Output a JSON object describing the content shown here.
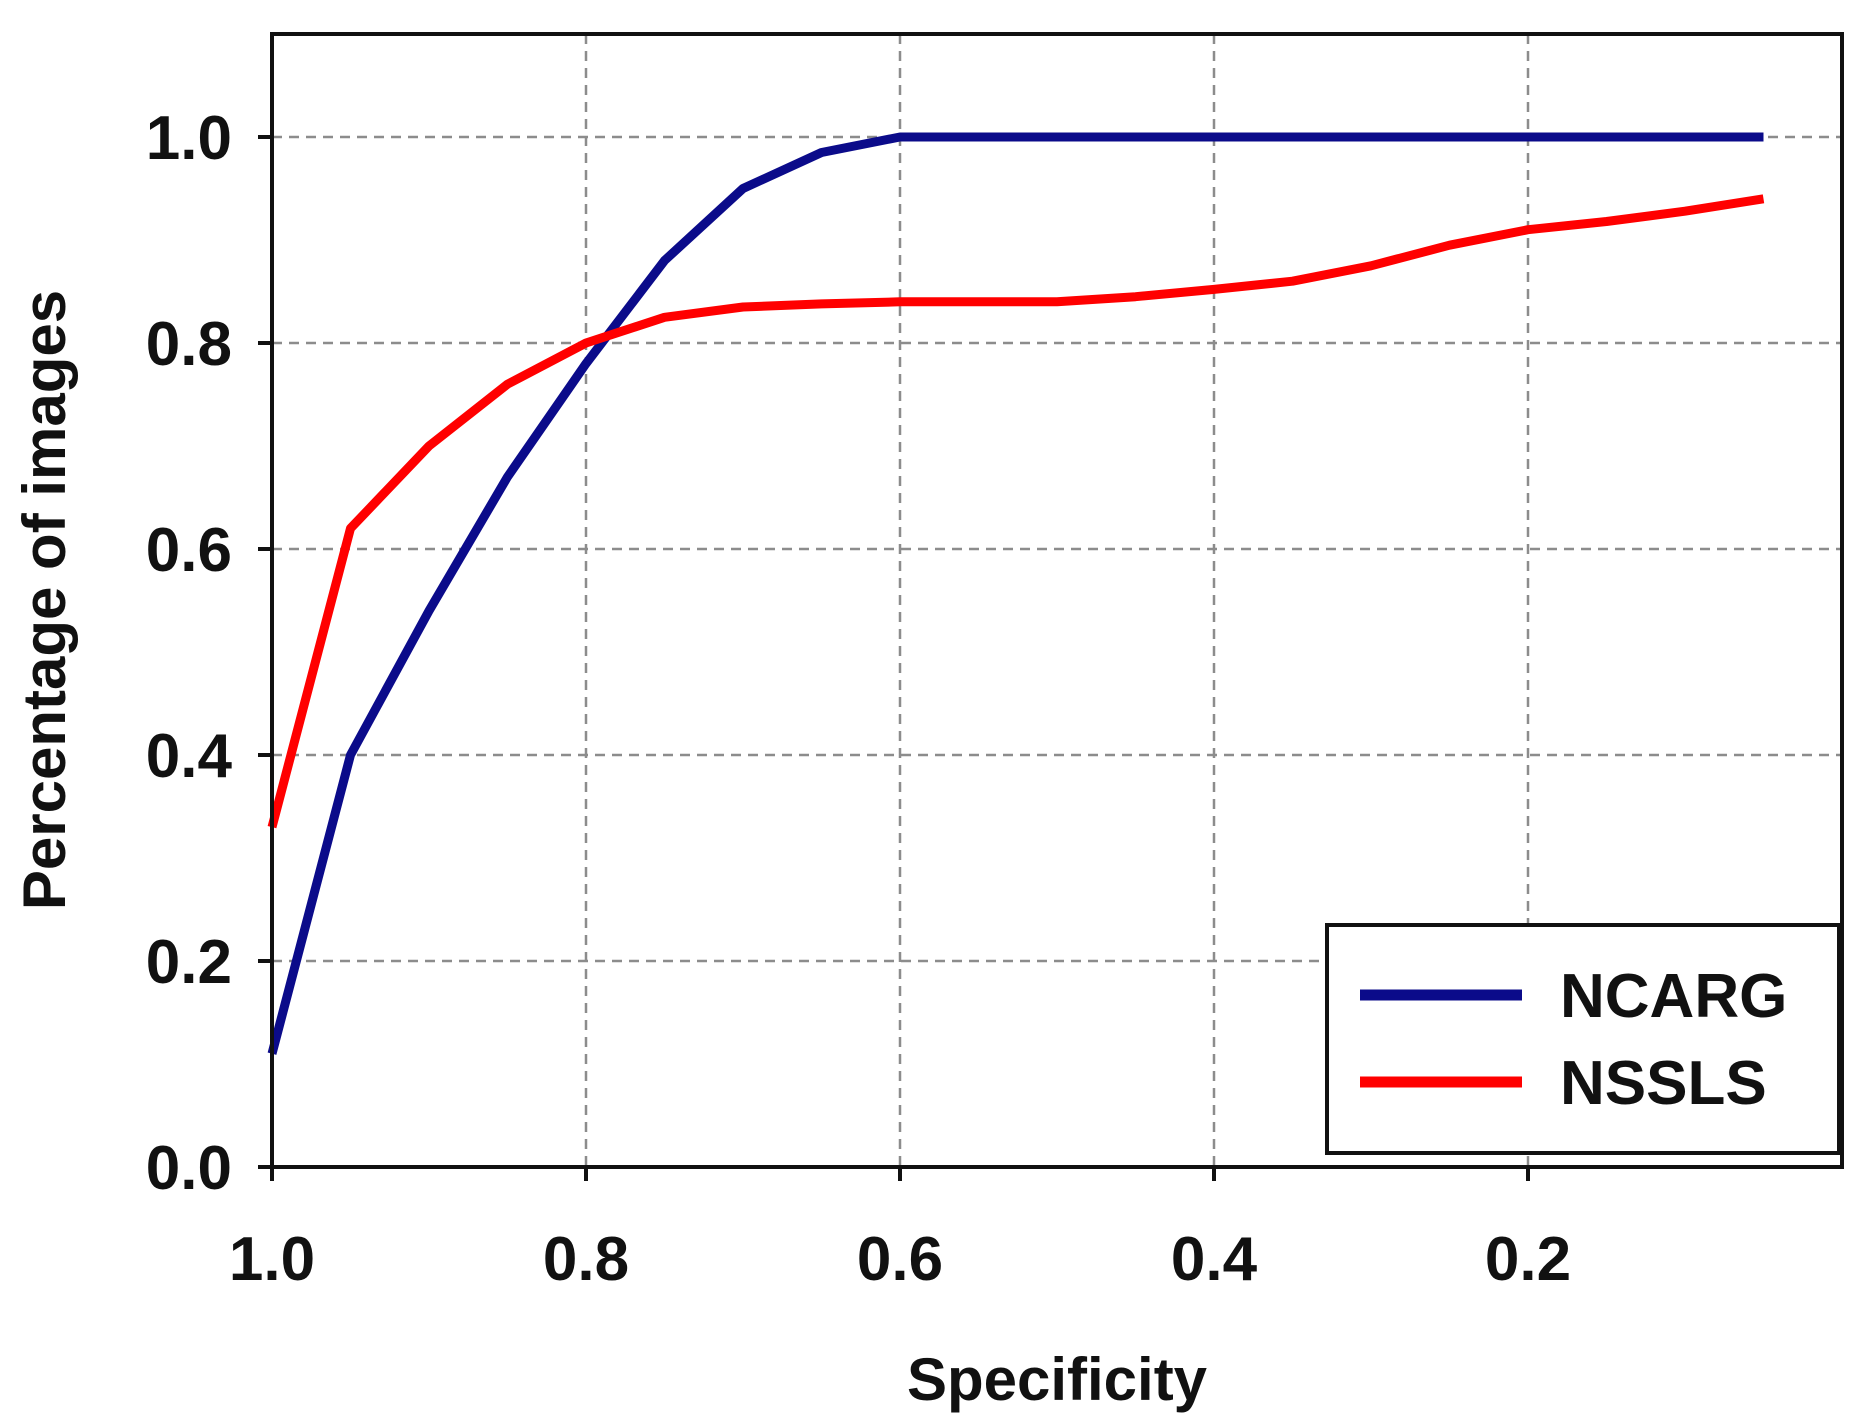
{
  "chart_data": {
    "type": "line",
    "title": "",
    "xlabel": "Specificity",
    "ylabel": "Percentage of images",
    "xlim": [
      1.0,
      0.0
    ],
    "ylim": [
      0.0,
      1.1
    ],
    "x_reversed": true,
    "grid": true,
    "xticks": [
      1.0,
      0.8,
      0.6,
      0.4,
      0.2
    ],
    "xtick_labels": [
      "1.0",
      "0.8",
      "0.6",
      "0.4",
      "0.2"
    ],
    "yticks": [
      0.0,
      0.2,
      0.4,
      0.6,
      0.8,
      1.0
    ],
    "ytick_labels": [
      "0.0",
      "0.2",
      "0.4",
      "0.6",
      "0.8",
      "1.0"
    ],
    "legend_position": "bottom-right",
    "series": [
      {
        "name": "NCARG",
        "color": "#0b0b8a",
        "x": [
          1.0,
          0.95,
          0.9,
          0.85,
          0.8,
          0.75,
          0.7,
          0.65,
          0.6,
          0.55,
          0.5,
          0.45,
          0.4,
          0.35,
          0.3,
          0.25,
          0.2,
          0.15,
          0.1,
          0.05
        ],
        "y": [
          0.11,
          0.4,
          0.54,
          0.67,
          0.78,
          0.88,
          0.95,
          0.985,
          1.0,
          1.0,
          1.0,
          1.0,
          1.0,
          1.0,
          1.0,
          1.0,
          1.0,
          1.0,
          1.0,
          1.0
        ]
      },
      {
        "name": "NSSLS",
        "color": "#ff0000",
        "x": [
          1.0,
          0.95,
          0.9,
          0.85,
          0.8,
          0.75,
          0.7,
          0.65,
          0.6,
          0.55,
          0.5,
          0.45,
          0.4,
          0.35,
          0.3,
          0.25,
          0.2,
          0.15,
          0.1,
          0.05
        ],
        "y": [
          0.33,
          0.62,
          0.7,
          0.76,
          0.8,
          0.825,
          0.835,
          0.838,
          0.84,
          0.84,
          0.84,
          0.845,
          0.852,
          0.86,
          0.875,
          0.895,
          0.91,
          0.918,
          0.928,
          0.94
        ]
      }
    ]
  }
}
